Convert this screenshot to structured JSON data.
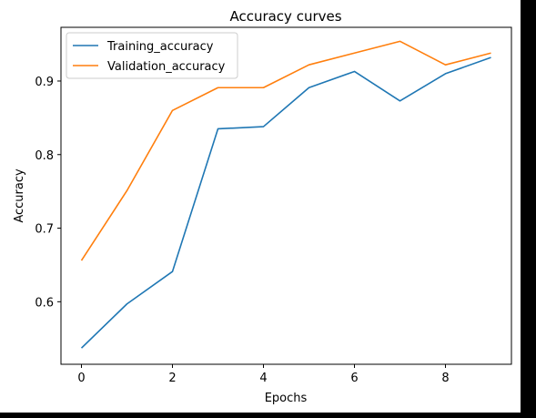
{
  "chart_data": {
    "type": "line",
    "title": "Accuracy curves",
    "xlabel": "Epochs",
    "ylabel": "Accuracy",
    "xlim": [
      -0.45,
      9.45
    ],
    "ylim": [
      0.515,
      0.973
    ],
    "xticks": [
      0,
      2,
      4,
      6,
      8
    ],
    "xtick_labels": [
      "0",
      "2",
      "4",
      "6",
      "8"
    ],
    "yticks": [
      0.6,
      0.7,
      0.8,
      0.9
    ],
    "ytick_labels": [
      "0.6",
      "0.7",
      "0.8",
      "0.9"
    ],
    "grid": false,
    "legend_position": "top-left",
    "x": [
      0,
      1,
      2,
      3,
      4,
      5,
      6,
      7,
      8,
      9
    ],
    "series": [
      {
        "name": "Training_accuracy",
        "color": "#1f77b4",
        "values": [
          0.537,
          0.597,
          0.641,
          0.835,
          0.838,
          0.891,
          0.913,
          0.873,
          0.91,
          0.932
        ]
      },
      {
        "name": "Validation_accuracy",
        "color": "#ff7f0e",
        "values": [
          0.656,
          0.751,
          0.86,
          0.891,
          0.891,
          0.922,
          0.938,
          0.954,
          0.922,
          0.938
        ]
      }
    ]
  }
}
